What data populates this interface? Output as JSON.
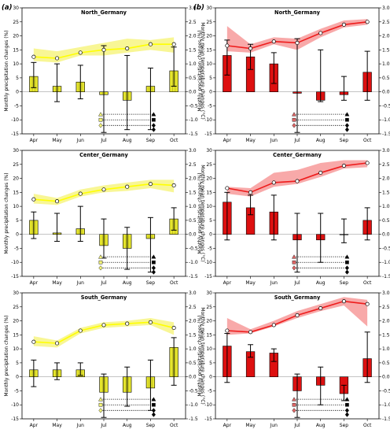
{
  "figure": {
    "panel_labels": [
      "(a)",
      "(b)"
    ],
    "left_ylabel": "Monthly precipitation changes (%)",
    "right_ylabel": "Monthly mean temperature changes (°C)",
    "colors": {
      "yellow_bar": "#e6e62e",
      "yellow_line": "#ffff00",
      "yellow_band": "#f7f58a",
      "red_bar": "#dd1010",
      "red_line": "#ee1c1c",
      "red_band": "#f7a0a0",
      "yellow_marker_face": "#f2f279",
      "red_marker_face": "#e06666"
    }
  },
  "chart_data": [
    {
      "type": "bar",
      "panel": "a",
      "row": 0,
      "title": "North_Germany",
      "scheme": "yellow",
      "categories": [
        "Apr",
        "May",
        "Jun",
        "Jul",
        "Aug",
        "Sep",
        "Oct"
      ],
      "ylim": [
        -15,
        30
      ],
      "ylim_right": [
        -1.5,
        3.0
      ],
      "yticks": [
        -15,
        -10,
        -5,
        0,
        5,
        10,
        15,
        20,
        25,
        30
      ],
      "yticks_right": [
        "-1.5",
        "-1.0",
        "-0.5",
        "0.0",
        "0.5",
        "1.0",
        "1.5",
        "2.0",
        "2.5",
        "3.0"
      ],
      "bars": [
        5.5,
        2.0,
        3.5,
        -1.0,
        -3.0,
        2.0,
        7.5
      ],
      "bar_err_low": [
        1.5,
        -3.5,
        -2.5,
        -14.5,
        -13.5,
        -13.5,
        2.0
      ],
      "bar_err_high": [
        10.5,
        10.0,
        9.5,
        16.5,
        13.0,
        8.5,
        16.0
      ],
      "temp": [
        1.25,
        1.2,
        1.4,
        1.5,
        1.55,
        1.7,
        1.7
      ],
      "temp_low": [
        1.1,
        1.05,
        1.3,
        1.3,
        1.4,
        1.5,
        1.4
      ],
      "temp_high": [
        1.55,
        1.45,
        1.6,
        1.75,
        1.9,
        1.85,
        1.95
      ],
      "sig_markers": [
        {
          "marker": "triangle",
          "y": -8.0,
          "x_from": 3,
          "x_to": 5
        },
        {
          "marker": "square",
          "y": -10.0,
          "x_from": 3,
          "x_to": 5
        },
        {
          "marker": "diamond",
          "y": -12.0,
          "x_from": 3,
          "x_to": 5
        },
        {
          "marker": "diamond",
          "y": -13.5,
          "x_from": 5,
          "x_to": 5
        }
      ]
    },
    {
      "type": "bar",
      "panel": "b",
      "row": 0,
      "title": "North_Germany",
      "scheme": "red",
      "categories": [
        "Apr",
        "May",
        "Jun",
        "Jul",
        "Aug",
        "Sep",
        "Oct"
      ],
      "ylim": [
        -15,
        30
      ],
      "ylim_right": [
        -1.5,
        3.0
      ],
      "yticks": [
        -15,
        -10,
        -5,
        0,
        5,
        10,
        15,
        20,
        25,
        30
      ],
      "yticks_right": [
        "-1.5",
        "-1.0",
        "-0.5",
        "0.0",
        "0.5",
        "1.0",
        "1.5",
        "2.0",
        "2.5",
        "3.0"
      ],
      "bars": [
        13.0,
        12.5,
        10.0,
        -0.5,
        -3.0,
        -1.0,
        7.0
      ],
      "bar_err_low": [
        6.0,
        8.0,
        3.0,
        -14.5,
        -3.5,
        -3.0,
        -3.0
      ],
      "bar_err_high": [
        18.5,
        17.0,
        14.0,
        19.0,
        15.0,
        5.5,
        14.5
      ],
      "temp": [
        1.65,
        1.55,
        1.8,
        1.75,
        2.1,
        2.4,
        2.5
      ],
      "temp_low": [
        1.45,
        1.4,
        1.7,
        1.5,
        1.95,
        2.3,
        2.4
      ],
      "temp_high": [
        2.35,
        1.7,
        1.95,
        1.9,
        2.25,
        2.55,
        2.6
      ],
      "sig_markers": [
        {
          "marker": "triangle",
          "y": -8.0,
          "x_from": 3,
          "x_to": 5
        },
        {
          "marker": "square",
          "y": -10.0,
          "x_from": 3,
          "x_to": 5
        },
        {
          "marker": "diamond",
          "y": -12.0,
          "x_from": 3,
          "x_to": 5
        },
        {
          "marker": "diamond",
          "y": -13.5,
          "x_from": 5,
          "x_to": 5
        }
      ]
    },
    {
      "type": "bar",
      "panel": "a",
      "row": 1,
      "title": "Center_Germany",
      "scheme": "yellow",
      "categories": [
        "Apr",
        "May",
        "Jun",
        "Jul",
        "Aug",
        "Sep",
        "Oct"
      ],
      "ylim": [
        -15,
        30
      ],
      "ylim_right": [
        -1.5,
        3.0
      ],
      "yticks": [
        -15,
        -10,
        -5,
        0,
        5,
        10,
        15,
        20,
        25,
        30
      ],
      "yticks_right": [
        "-1.5",
        "-1.0",
        "-0.5",
        "0.0",
        "0.5",
        "1.0",
        "1.5",
        "2.0",
        "2.5",
        "3.0"
      ],
      "bars": [
        5.0,
        0.5,
        2.0,
        -4.0,
        -5.0,
        -1.5,
        5.5
      ],
      "bar_err_low": [
        -1.5,
        -2.5,
        -2.5,
        -8.5,
        -12.5,
        -13.5,
        1.5
      ],
      "bar_err_high": [
        8.0,
        7.5,
        10.0,
        5.5,
        2.5,
        6.0,
        9.5
      ],
      "temp": [
        1.25,
        1.18,
        1.45,
        1.6,
        1.7,
        1.8,
        1.75
      ],
      "temp_low": [
        1.1,
        1.05,
        1.35,
        1.5,
        1.55,
        1.65,
        1.5
      ],
      "temp_high": [
        1.45,
        1.3,
        1.6,
        1.75,
        1.85,
        1.95,
        1.95
      ],
      "sig_markers": [
        {
          "marker": "triangle",
          "y": -8.0,
          "x_from": 3,
          "x_to": 5
        },
        {
          "marker": "square",
          "y": -10.0,
          "x_from": 3,
          "x_to": 5
        },
        {
          "marker": "diamond",
          "y": -12.0,
          "x_from": 3,
          "x_to": 5
        },
        {
          "marker": "diamond",
          "y": -13.5,
          "x_from": 5,
          "x_to": 5
        }
      ]
    },
    {
      "type": "bar",
      "panel": "b",
      "row": 1,
      "title": "Center_Germany",
      "scheme": "red",
      "categories": [
        "Apr",
        "May",
        "Jun",
        "Jul",
        "Aug",
        "Sep",
        "Oct"
      ],
      "ylim": [
        -15,
        30
      ],
      "ylim_right": [
        -1.5,
        3.0
      ],
      "yticks": [
        -15,
        -10,
        -5,
        0,
        5,
        10,
        15,
        20,
        25,
        30
      ],
      "yticks_right": [
        "-1.5",
        "-1.0",
        "-0.5",
        "0.0",
        "0.5",
        "1.0",
        "1.5",
        "2.0",
        "2.5",
        "3.0"
      ],
      "bars": [
        11.5,
        9.5,
        8.0,
        -2.0,
        -2.0,
        0.0,
        5.0
      ],
      "bar_err_low": [
        -2.0,
        7.0,
        -2.0,
        -13.5,
        -10.0,
        -3.0,
        -2.0
      ],
      "bar_err_high": [
        15.0,
        14.0,
        14.0,
        7.5,
        7.5,
        5.5,
        9.5
      ],
      "temp": [
        1.65,
        1.5,
        1.85,
        1.9,
        2.2,
        2.45,
        2.55
      ],
      "temp_low": [
        1.45,
        1.35,
        1.7,
        1.8,
        2.05,
        2.35,
        2.4
      ],
      "temp_high": [
        1.7,
        1.65,
        2.2,
        2.3,
        2.55,
        2.65,
        2.65
      ],
      "sig_markers": [
        {
          "marker": "triangle",
          "y": -8.0,
          "x_from": 3,
          "x_to": 5
        },
        {
          "marker": "square",
          "y": -10.0,
          "x_from": 3,
          "x_to": 5
        },
        {
          "marker": "diamond",
          "y": -12.0,
          "x_from": 3,
          "x_to": 5
        },
        {
          "marker": "diamond",
          "y": -13.5,
          "x_from": 5,
          "x_to": 5
        }
      ]
    },
    {
      "type": "bar",
      "panel": "a",
      "row": 2,
      "title": "South_Germany",
      "scheme": "yellow",
      "categories": [
        "Apr",
        "May",
        "Jun",
        "Jul",
        "Aug",
        "Sep",
        "Oct"
      ],
      "ylim": [
        -15,
        30
      ],
      "ylim_right": [
        -1.5,
        3.0
      ],
      "yticks": [
        -15,
        -10,
        -5,
        0,
        5,
        10,
        15,
        20,
        25,
        30
      ],
      "yticks_right": [
        "-1.5",
        "-1.0",
        "-0.5",
        "0.0",
        "0.5",
        "1.0",
        "1.5",
        "2.0",
        "2.5",
        "3.0"
      ],
      "bars": [
        2.5,
        2.5,
        2.5,
        -5.5,
        -5.5,
        -4.0,
        10.5
      ],
      "bar_err_low": [
        -3.5,
        -1.0,
        0.5,
        -14.5,
        -10.5,
        -12.0,
        -3.0
      ],
      "bar_err_high": [
        6.0,
        5.0,
        5.0,
        1.0,
        3.5,
        6.0,
        14.0
      ],
      "temp": [
        1.25,
        1.2,
        1.65,
        1.85,
        1.9,
        1.95,
        1.75
      ],
      "temp_low": [
        1.1,
        1.05,
        1.55,
        1.75,
        1.8,
        1.85,
        1.5
      ],
      "temp_high": [
        1.45,
        1.3,
        1.75,
        1.95,
        2.0,
        2.1,
        1.95
      ],
      "sig_markers": [
        {
          "marker": "triangle",
          "y": -8.0,
          "x_from": 3,
          "x_to": 5
        },
        {
          "marker": "square",
          "y": -10.0,
          "x_from": 3,
          "x_to": 5
        },
        {
          "marker": "diamond",
          "y": -12.0,
          "x_from": 3,
          "x_to": 5
        },
        {
          "marker": "diamond",
          "y": -13.5,
          "x_from": 5,
          "x_to": 5
        }
      ]
    },
    {
      "type": "bar",
      "panel": "b",
      "row": 2,
      "title": "South_Germany",
      "scheme": "red",
      "categories": [
        "Apr",
        "May",
        "Jun",
        "Jul",
        "Aug",
        "Sep",
        "Oct"
      ],
      "ylim": [
        -15,
        30
      ],
      "ylim_right": [
        -1.5,
        3.0
      ],
      "yticks": [
        -15,
        -10,
        -5,
        0,
        5,
        10,
        15,
        20,
        25,
        30
      ],
      "yticks_right": [
        "-1.5",
        "-1.0",
        "-0.5",
        "0.0",
        "0.5",
        "1.0",
        "1.5",
        "2.0",
        "2.5",
        "3.0"
      ],
      "bars": [
        11.0,
        9.0,
        8.5,
        -5.0,
        -3.0,
        -6.0,
        6.5
      ],
      "bar_err_low": [
        -2.0,
        7.0,
        5.5,
        -14.5,
        -10.0,
        -8.5,
        -2.0
      ],
      "bar_err_high": [
        15.5,
        11.5,
        10.0,
        1.0,
        3.5,
        -3.0,
        16.0
      ],
      "temp": [
        1.65,
        1.6,
        1.85,
        2.2,
        2.45,
        2.7,
        2.6
      ],
      "temp_low": [
        1.5,
        1.55,
        1.8,
        2.1,
        2.35,
        2.55,
        1.8
      ],
      "temp_high": [
        2.1,
        1.7,
        2.0,
        2.35,
        2.6,
        2.85,
        2.75
      ],
      "sig_markers": [
        {
          "marker": "triangle",
          "y": -8.0,
          "x_from": 3,
          "x_to": 5
        },
        {
          "marker": "square",
          "y": -10.0,
          "x_from": 3,
          "x_to": 5
        },
        {
          "marker": "diamond",
          "y": -12.0,
          "x_from": 3,
          "x_to": 5
        },
        {
          "marker": "diamond",
          "y": -13.5,
          "x_from": 5,
          "x_to": 5
        }
      ]
    }
  ]
}
